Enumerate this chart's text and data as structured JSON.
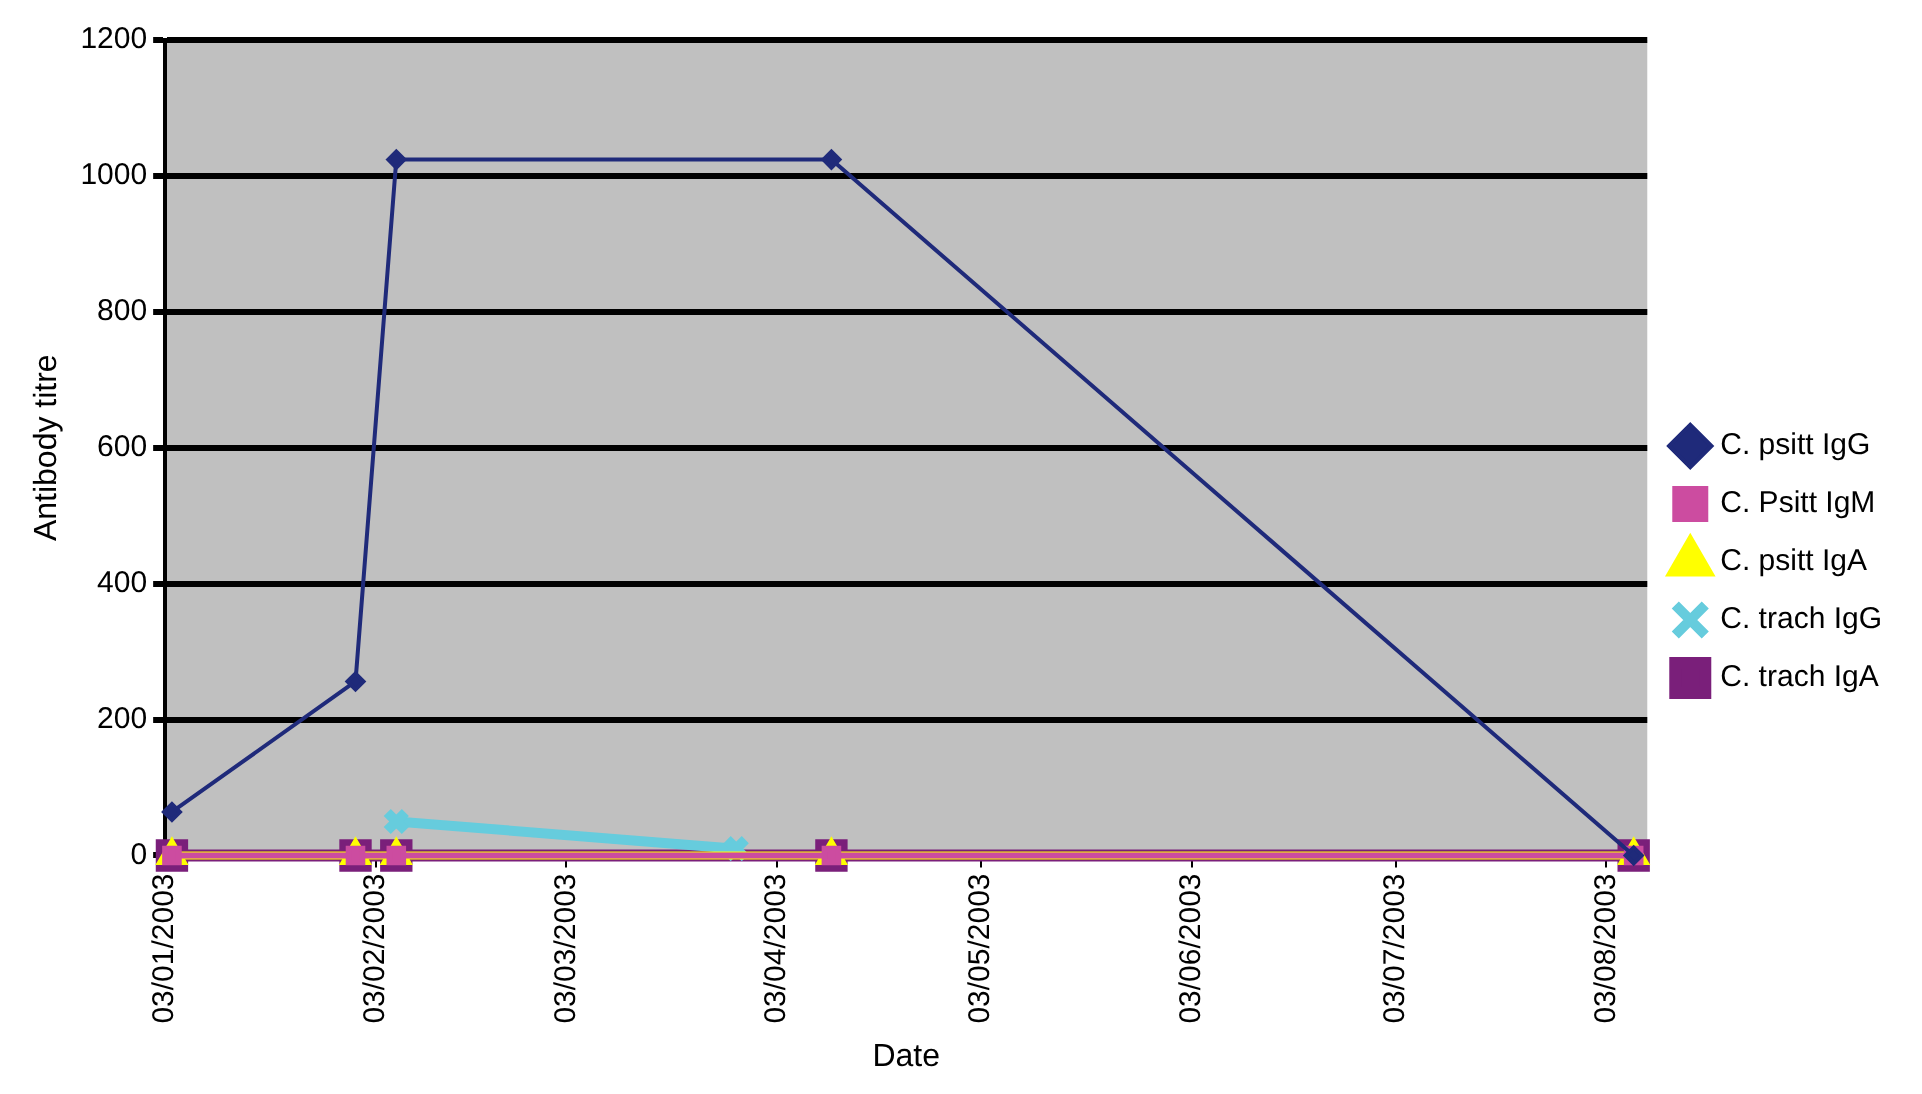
{
  "chart_data": {
    "type": "line",
    "xlabel": "Date",
    "ylabel": "Antibody titre",
    "x": [
      "2003-01-04",
      "2003-01-31",
      "2003-02-06",
      "2003-04-11",
      "2003-08-07"
    ],
    "series": [
      {
        "name": "C. psitt IgG",
        "color": "#1f2a7a",
        "marker": "diamond",
        "values": [
          64,
          256,
          1024,
          1024,
          0
        ]
      },
      {
        "name": "C. Psitt IgM",
        "color": "#cc4ca0",
        "marker": "square",
        "values": [
          0,
          0,
          0,
          0,
          0
        ]
      },
      {
        "name": "C. psitt IgA",
        "color": "#ffff00",
        "marker": "triangle",
        "values": [
          0,
          0,
          0,
          0,
          0
        ]
      },
      {
        "name": "C. trach IgG",
        "color": "#66ccdd",
        "marker": "cross",
        "x": [
          "2003-02-06",
          "2003-03-28"
        ],
        "values": [
          50,
          10
        ]
      },
      {
        "name": "C. trach IgA",
        "color": "#7a1f7a",
        "marker": "square",
        "values": [
          0,
          0,
          0,
          0,
          0
        ]
      }
    ],
    "xlim": [
      "2003-01-03",
      "2003-08-09"
    ],
    "xticks": [
      {
        "value": "2003-01-03",
        "label": "03/01/2003"
      },
      {
        "value": "2003-02-03",
        "label": "03/02/2003"
      },
      {
        "value": "2003-03-03",
        "label": "03/03/2003"
      },
      {
        "value": "2003-04-03",
        "label": "03/04/2003"
      },
      {
        "value": "2003-05-03",
        "label": "03/05/2003"
      },
      {
        "value": "2003-06-03",
        "label": "03/06/2003"
      },
      {
        "value": "2003-07-03",
        "label": "03/07/2003"
      },
      {
        "value": "2003-08-03",
        "label": "03/08/2003"
      }
    ],
    "ylim": [
      0,
      1200
    ],
    "yticks": [
      0,
      200,
      400,
      600,
      800,
      1000,
      1200
    ],
    "grid": "y",
    "legend": "right",
    "line_style": "solid"
  }
}
